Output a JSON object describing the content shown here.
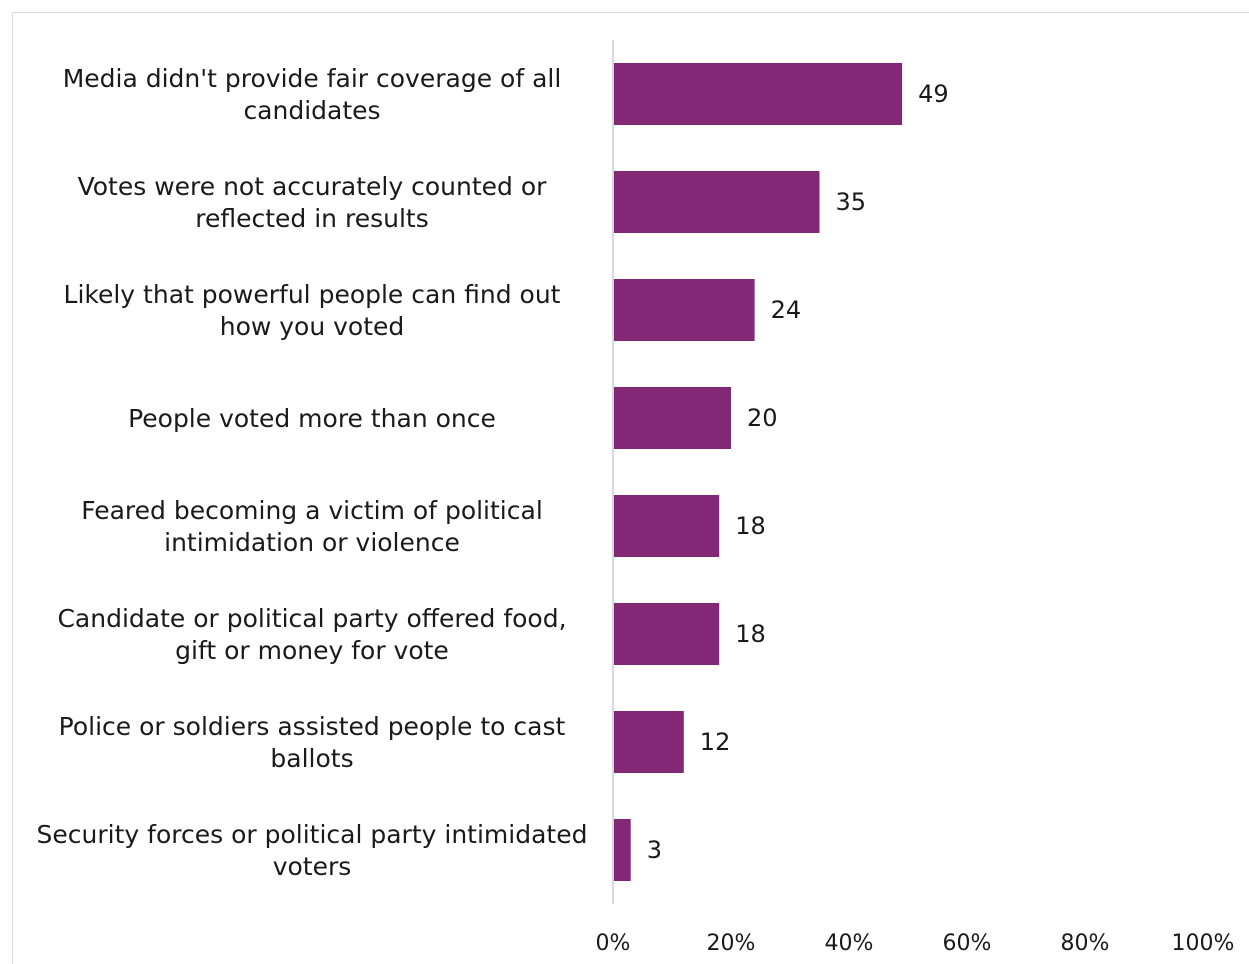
{
  "chart_data": {
    "type": "bar",
    "orientation": "horizontal",
    "categories": [
      [
        "Media didn't provide fair coverage of all",
        "candidates"
      ],
      [
        "Votes were not accurately counted or",
        "reflected in results"
      ],
      [
        "Likely that powerful people can find out",
        "how you voted"
      ],
      [
        "People voted more than once"
      ],
      [
        "Feared becoming a victim of political",
        "intimidation or violence"
      ],
      [
        "Candidate or political party offered food,",
        "gift or money for vote"
      ],
      [
        "Police or soldiers assisted people to cast",
        "ballots"
      ],
      [
        "Security forces or political party intimidated",
        "voters"
      ]
    ],
    "values": [
      49,
      35,
      24,
      20,
      18,
      18,
      12,
      3
    ],
    "value_labels": [
      "49",
      "35",
      "24",
      "20",
      "18",
      "18",
      "12",
      "3"
    ],
    "xlim": [
      0,
      100
    ],
    "x_ticks": [
      "0%",
      "20%",
      "40%",
      "60%",
      "80%",
      "100%"
    ],
    "bar_color": "#832777",
    "axis_color": "#d9d9d9",
    "grid": false,
    "legend": "none"
  }
}
